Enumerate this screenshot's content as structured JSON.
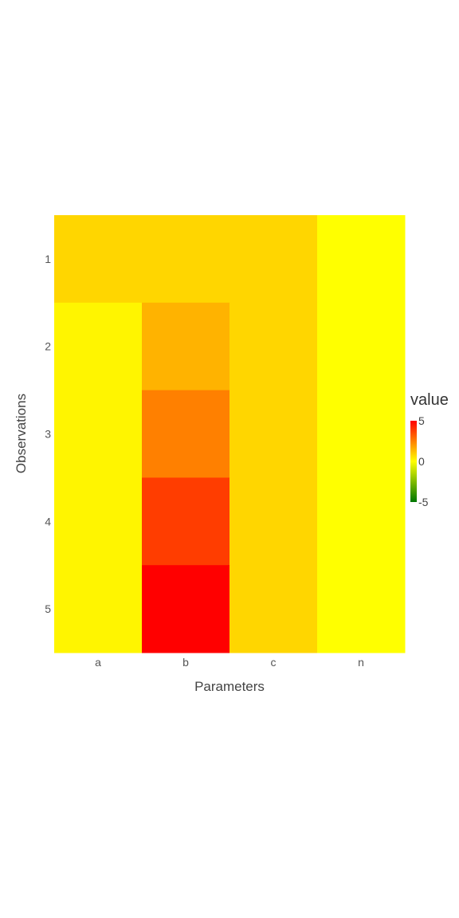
{
  "chart_data": {
    "type": "heatmap",
    "x": [
      "a",
      "b",
      "c",
      "n"
    ],
    "y": [
      "1",
      "2",
      "3",
      "4",
      "5"
    ],
    "z": [
      [
        0.8,
        0.8,
        0.8,
        0.0
      ],
      [
        0.2,
        1.5,
        0.8,
        0.0
      ],
      [
        0.2,
        2.5,
        0.8,
        0.0
      ],
      [
        0.2,
        3.8,
        0.8,
        0.0
      ],
      [
        0.2,
        5.0,
        0.8,
        0.0
      ]
    ],
    "xlabel": "Parameters",
    "ylabel": "Observations",
    "colorbar": {
      "title": "value",
      "range": [
        -5,
        5
      ],
      "ticks": [
        5,
        0,
        -5
      ],
      "tick_labels": [
        "5",
        "0",
        "-5"
      ],
      "colorscale": [
        "#007700",
        "#ffff00",
        "#ff0000"
      ]
    }
  }
}
